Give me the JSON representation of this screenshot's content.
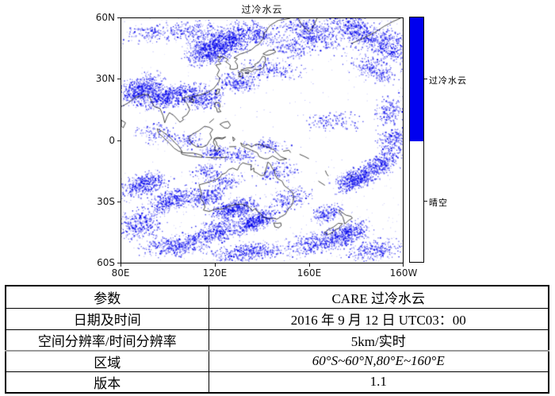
{
  "figure": {
    "title": "过冷水云",
    "y_ticks": [
      "60N",
      "30N",
      "0",
      "30S",
      "60S"
    ],
    "x_ticks": [
      "80E",
      "120E",
      "160E",
      "160W"
    ],
    "colorbar": {
      "cloud_label": "过冷水云",
      "clear_label": "晴空",
      "cloud_color": "#0000ee",
      "clear_color": "#ffffff"
    }
  },
  "table": {
    "rows": [
      {
        "label": "参数",
        "value": "CARE 过冷水云"
      },
      {
        "label": "日期及时间",
        "value": "2016 年 9 月 12 日 UTC03：00"
      },
      {
        "label": "空间分辨率/时间分辨率",
        "value": "5km/实时"
      },
      {
        "label": "区域",
        "value": "60°S~60°N,80°E~160°E"
      },
      {
        "label": "版本",
        "value": "1.1"
      }
    ]
  }
}
